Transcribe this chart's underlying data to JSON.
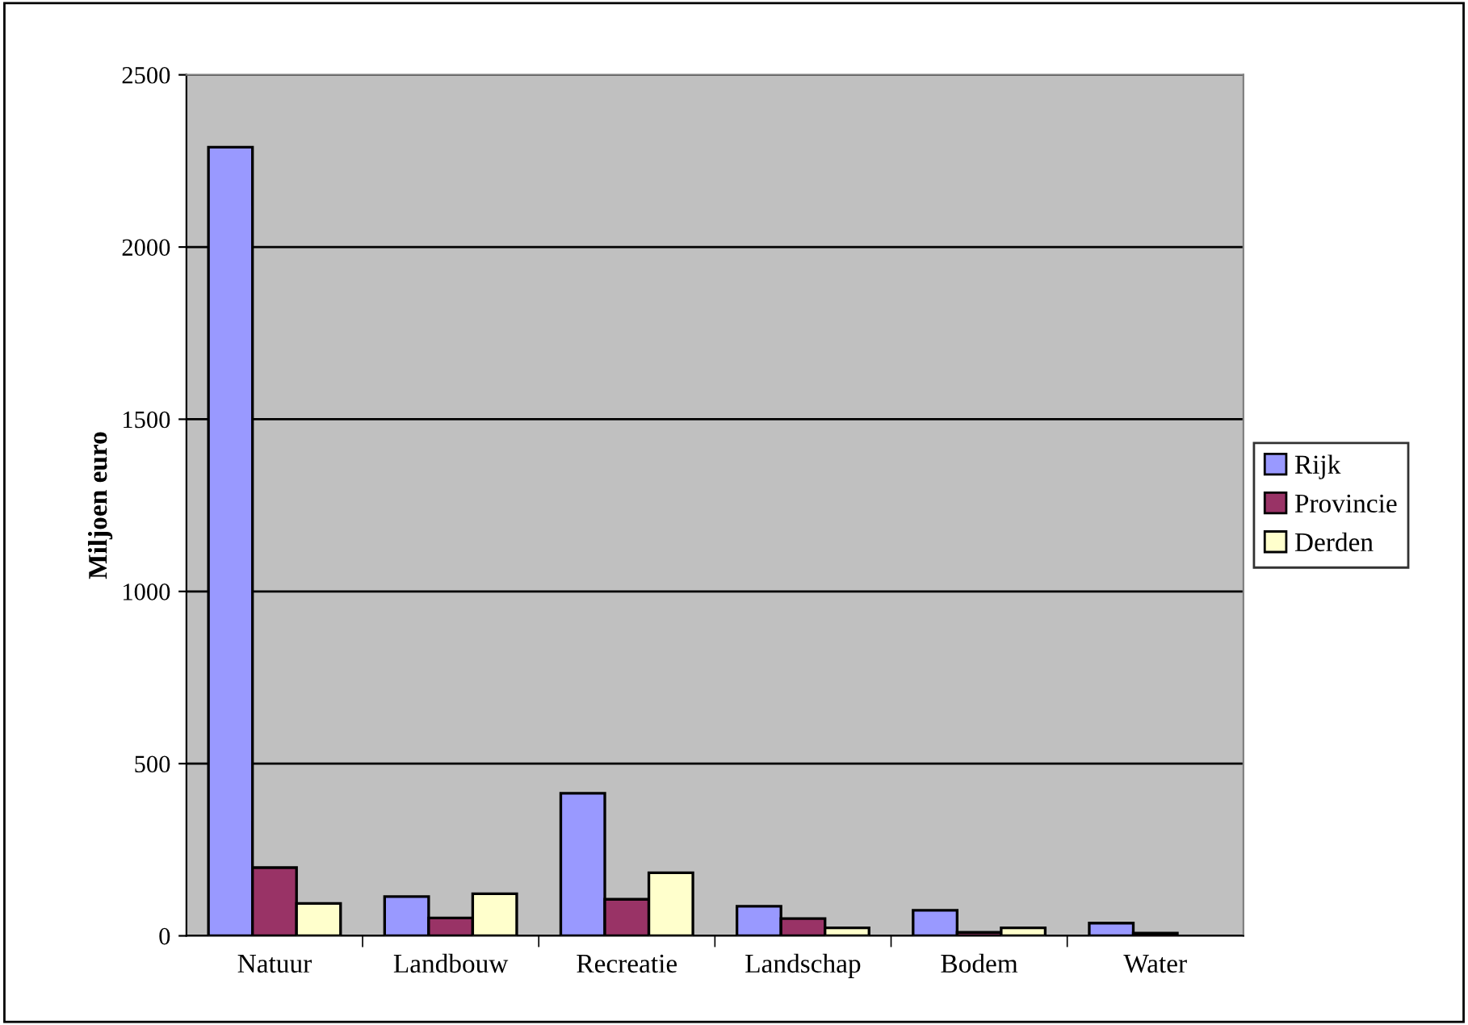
{
  "chart_data": {
    "type": "bar",
    "ylabel": "Miljoen euro",
    "categories": [
      "Natuur",
      "Landbouw",
      "Recreatie",
      "Landschap",
      "Bodem",
      "Water"
    ],
    "series": [
      {
        "name": "Rijk",
        "color": "#9999ff",
        "values": [
          2290,
          114,
          414,
          86,
          74,
          37
        ]
      },
      {
        "name": "Provincie",
        "color": "#993366",
        "values": [
          198,
          52,
          106,
          50,
          10,
          8
        ]
      },
      {
        "name": "Derden",
        "color": "#ffffcc",
        "values": [
          94,
          122,
          183,
          23,
          23,
          null
        ]
      }
    ],
    "ylim": [
      0,
      2500
    ],
    "yticks": [
      0,
      500,
      1000,
      1500,
      2000,
      2500
    ],
    "grid": "y",
    "legend": "right"
  }
}
